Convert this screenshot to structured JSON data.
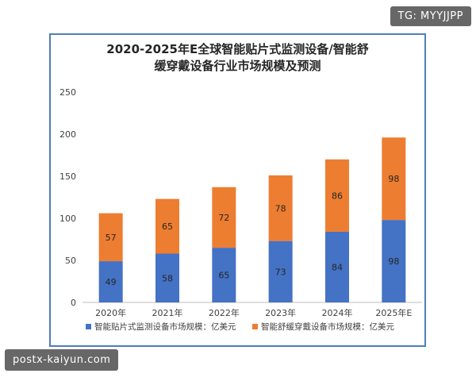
{
  "watermarks": {
    "top_right": "TG: MYYJJPP",
    "bottom_left": "postx-kaiyun.com"
  },
  "colors": {
    "frame": "#4f7fb5",
    "series_monitor": "#4472c4",
    "series_wearable": "#ed7d31",
    "label_on_bar": "#262626",
    "axis_text": "#404040"
  },
  "chart_data": {
    "type": "bar",
    "stacked": true,
    "title": "2020-2025年E全球智能贴片式监测设备/智能舒缓穿戴设备行业市场规模及预测",
    "title_lines": [
      "2020-2025年E全球智能贴片式监测设备/智能舒",
      "缓穿戴设备行业市场规模及预测"
    ],
    "categories": [
      "2020年",
      "2021年",
      "2022年",
      "2023年",
      "2024年",
      "2025年E"
    ],
    "series": [
      {
        "name": "智能贴片式监测设备市场规模：亿美元",
        "values": [
          49,
          58,
          65,
          73,
          84,
          98
        ]
      },
      {
        "name": "智能舒缓穿戴设备市场规模：亿美元",
        "values": [
          57,
          65,
          72,
          78,
          86,
          98
        ]
      }
    ],
    "ylim": [
      0,
      250
    ],
    "yticks": [
      0,
      50,
      100,
      150,
      200,
      250
    ],
    "xlabel": "",
    "ylabel": "",
    "grid": false,
    "legend_position": "bottom"
  }
}
